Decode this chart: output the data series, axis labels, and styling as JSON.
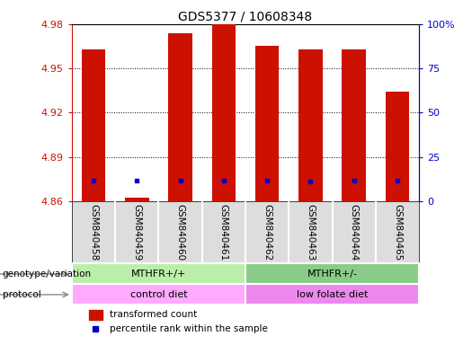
{
  "title": "GDS5377 / 10608348",
  "samples": [
    "GSM840458",
    "GSM840459",
    "GSM840460",
    "GSM840461",
    "GSM840462",
    "GSM840463",
    "GSM840464",
    "GSM840465"
  ],
  "red_values": [
    4.963,
    4.862,
    4.974,
    4.98,
    4.965,
    4.963,
    4.963,
    4.934
  ],
  "blue_values": [
    4.874,
    4.874,
    4.874,
    4.874,
    4.874,
    4.873,
    4.874,
    4.874
  ],
  "ymin": 4.86,
  "ymax": 4.98,
  "yticks_left": [
    4.86,
    4.89,
    4.92,
    4.95,
    4.98
  ],
  "yticks_right_pct": [
    0,
    25,
    50,
    75,
    100
  ],
  "yticks_right_labels": [
    "0",
    "25",
    "50",
    "75",
    "100%"
  ],
  "bar_color": "#cc1100",
  "dot_color": "#0000cc",
  "plot_bg": "#ffffff",
  "grid_color": "#888888",
  "genotype_groups": [
    {
      "label": "MTHFR+/+",
      "start": 0,
      "end": 4,
      "color": "#bbeeaa"
    },
    {
      "label": "MTHFR+/-",
      "start": 4,
      "end": 8,
      "color": "#88cc88"
    }
  ],
  "protocol_groups": [
    {
      "label": "control diet",
      "start": 0,
      "end": 4,
      "color": "#ffaaff"
    },
    {
      "label": "low folate diet",
      "start": 4,
      "end": 8,
      "color": "#ee88ee"
    }
  ],
  "xtick_bg": "#dddddd",
  "geno_label": "genotype/variation",
  "proto_label": "protocol",
  "legend_red": "transformed count",
  "legend_blue": "percentile rank within the sample",
  "bar_width": 0.55,
  "title_fontsize": 10,
  "label_fontsize": 8,
  "tick_fontsize": 8,
  "sample_fontsize": 7.5
}
